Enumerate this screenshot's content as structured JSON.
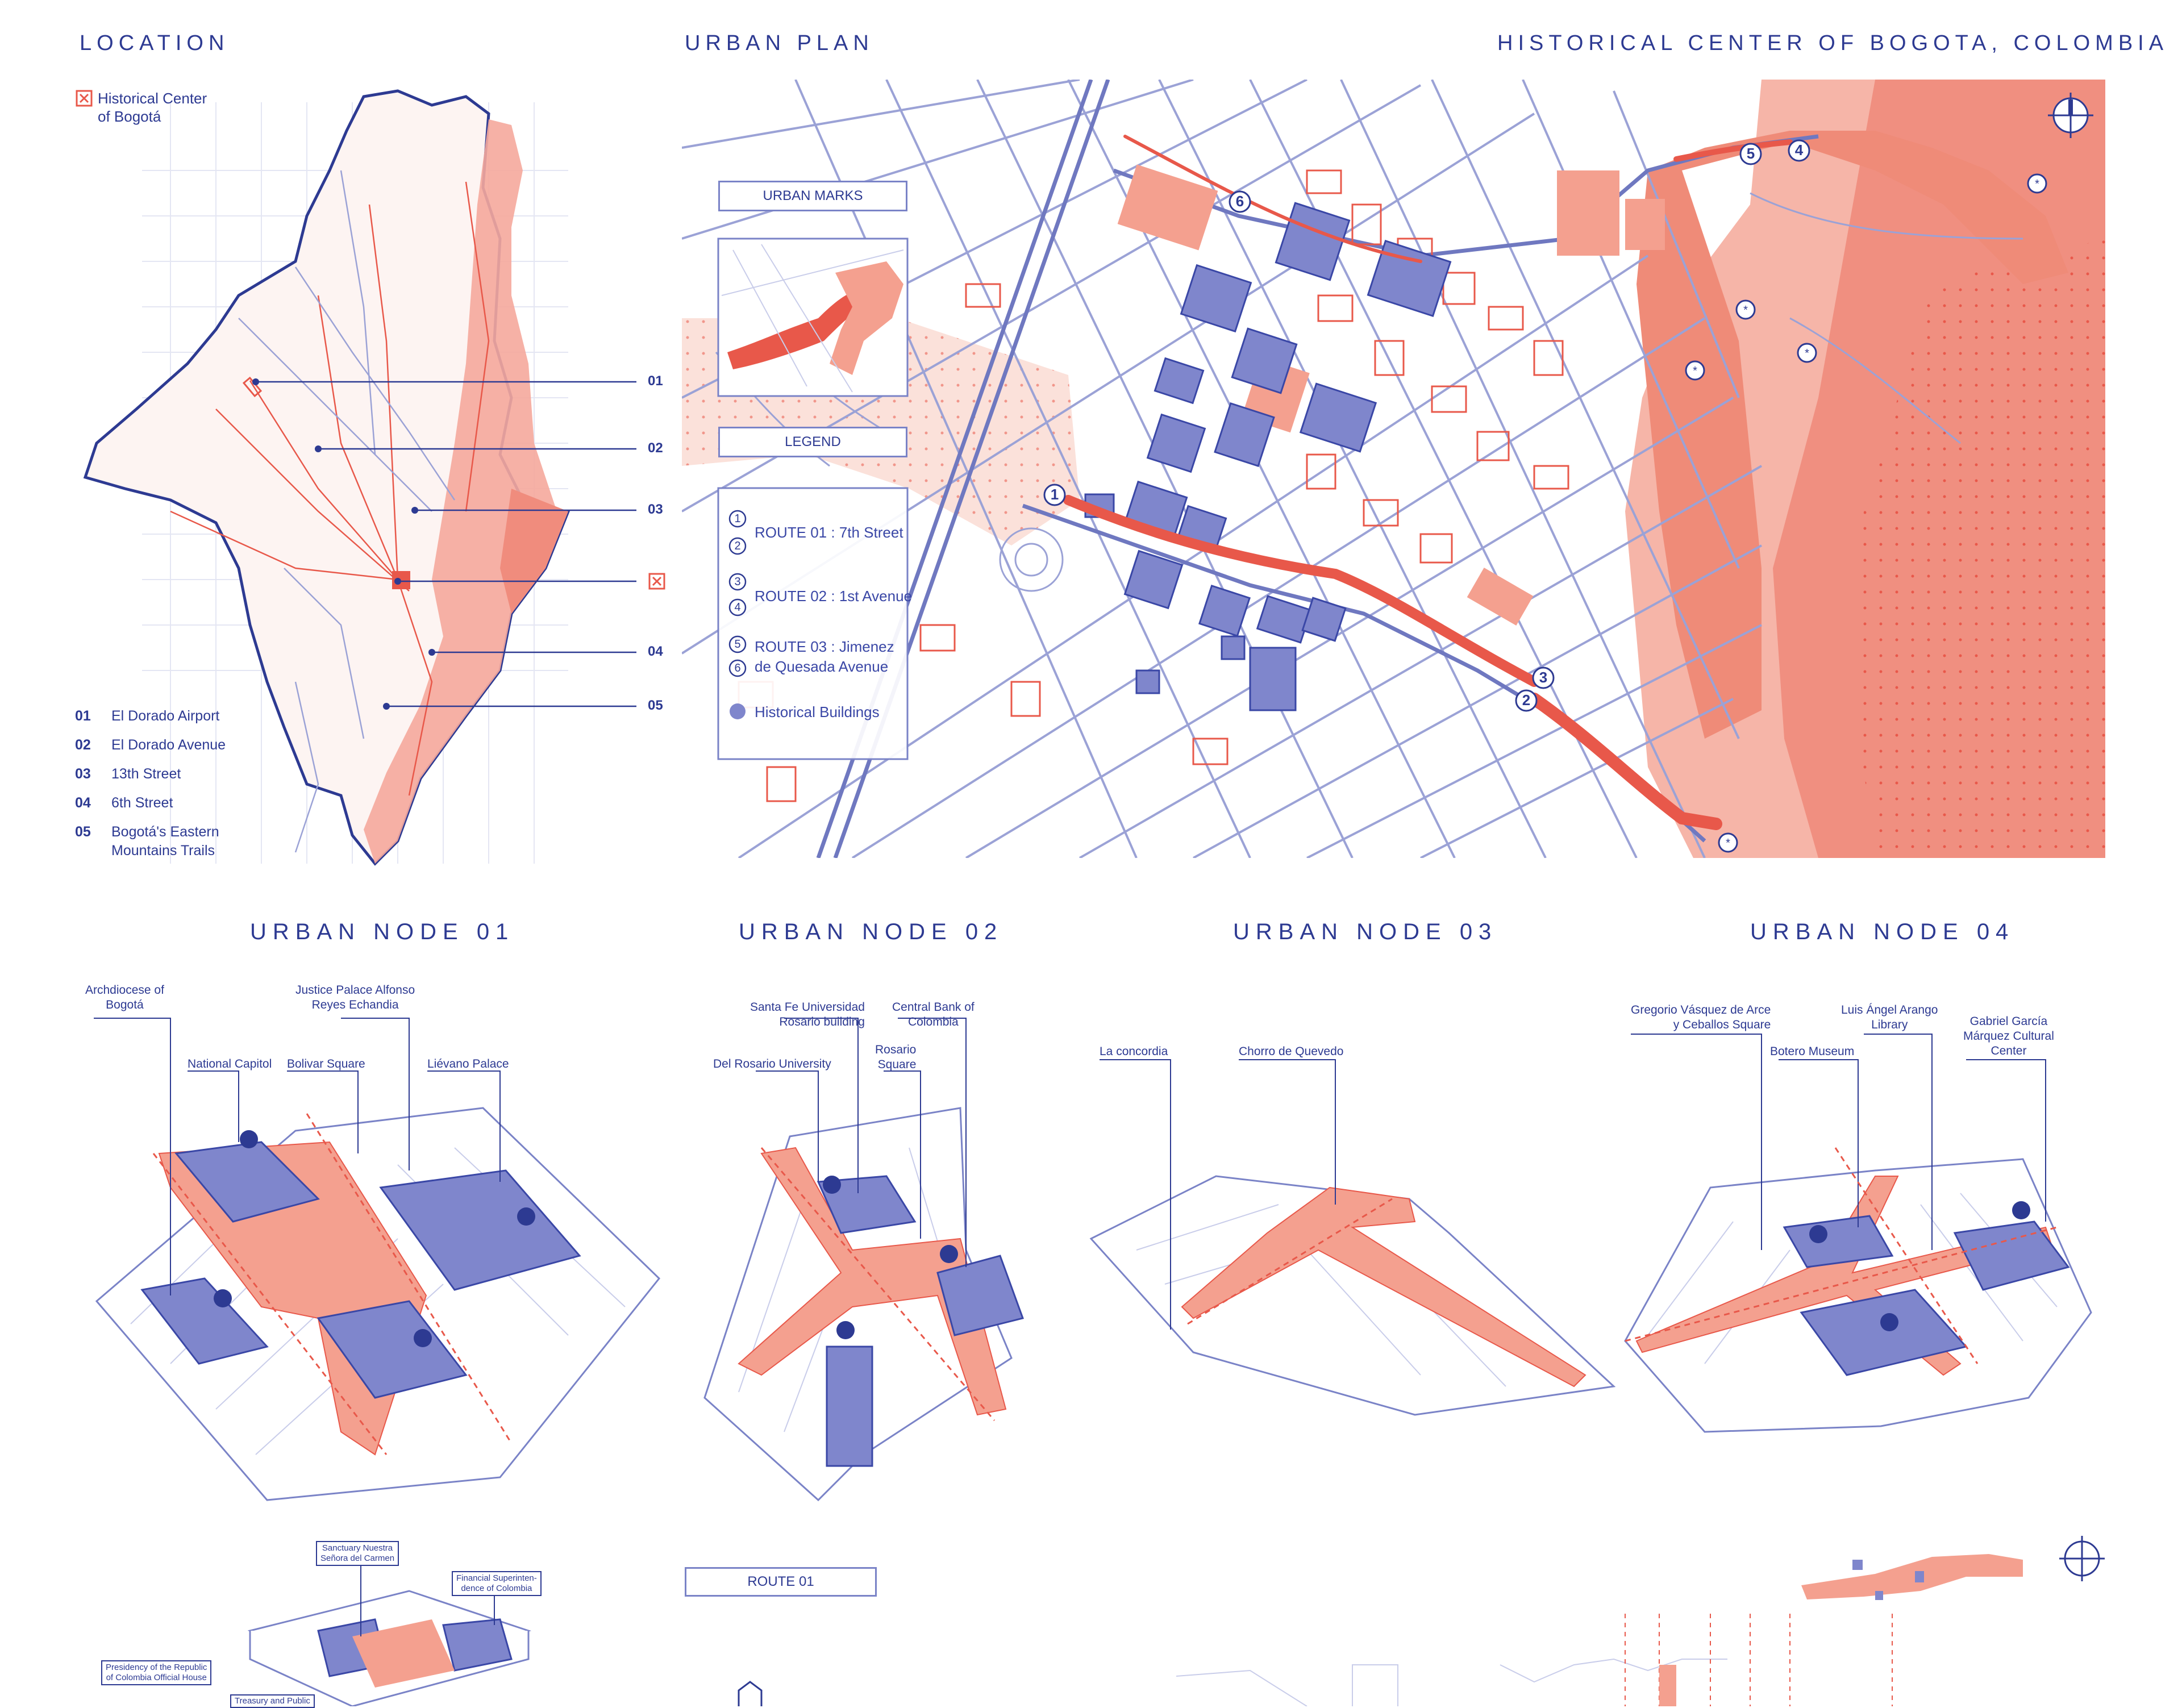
{
  "header": {
    "location": "LOCATION",
    "urban_plan": "URBAN PLAN",
    "project": "HISTORICAL CENTER OF BOGOTA, COLOMBIA"
  },
  "location_map": {
    "legend_line1": "Historical Center",
    "legend_line2": "of Bogotá",
    "markers": [
      "01",
      "02",
      "03",
      "x",
      "04",
      "05"
    ],
    "list": [
      {
        "num": "01",
        "label": "El Dorado Airport"
      },
      {
        "num": "02",
        "label": "El Dorado Avenue"
      },
      {
        "num": "03",
        "label": "13th Street"
      },
      {
        "num": "04",
        "label": "6th Street"
      },
      {
        "num": "05",
        "label": "Bogotá's Eastern"
      },
      {
        "num": "",
        "label": "Mountains Trails"
      }
    ]
  },
  "urban_plan": {
    "urban_marks": "URBAN MARKS",
    "legend": "LEGEND",
    "legend_items": [
      {
        "nums": "1 / 2",
        "label": "ROUTE 01 : 7th Street"
      },
      {
        "nums": "3 / 4",
        "label": "ROUTE 02 : 1st Avenue"
      },
      {
        "nums": "5 / 6",
        "label": "ROUTE 03 :  Jimenez"
      },
      {
        "nums": "",
        "label": "de Quesada Avenue"
      },
      {
        "nums": "",
        "label": "Historical Buildings"
      }
    ],
    "route_markers": [
      "1",
      "2",
      "3",
      "4",
      "5",
      "6"
    ]
  },
  "nodes": [
    {
      "title": "URBAN  NODE 01",
      "labels": [
        "Archdiocese of",
        "Bogotá",
        "Justice Palace Alfonso",
        "Reyes Echandia",
        "National Capitol",
        "Bolivar Square",
        "Liévano Palace"
      ]
    },
    {
      "title": "URBAN  NODE 02",
      "labels": [
        "Santa Fe Universidad",
        "Rosario building",
        "Central Bank of",
        "Colombia",
        "Rosario",
        "Square",
        "Del Rosario University"
      ]
    },
    {
      "title": "URBAN  NODE 03",
      "labels": [
        "La concordia",
        "Chorro de Quevedo"
      ]
    },
    {
      "title": "URBAN  NODE 04",
      "labels": [
        "Gregorio Vásquez de Arce",
        "y Ceballos Square",
        "Luis Ángel Arango",
        "Library",
        "Gabriel García",
        "Márquez Cultural",
        "Center",
        "Botero Museum"
      ]
    }
  ],
  "bottom": {
    "sanctuary1": "Sanctuary Nuestra",
    "sanctuary2": "Señora del Carmen",
    "financial1": "Financial Superinten-",
    "financial2": "dence of Colombia",
    "presidency1": "Presidency of the Republic",
    "presidency2": "of Colombia Official House",
    "treasury": "Treasury and Public",
    "route01": "ROUTE 01"
  },
  "colors": {
    "blue": "#2d3a92",
    "line_blue": "#7a83c7",
    "fill_blue": "#7f86cc",
    "red": "#e8584a",
    "pink": "#f4a08f"
  }
}
